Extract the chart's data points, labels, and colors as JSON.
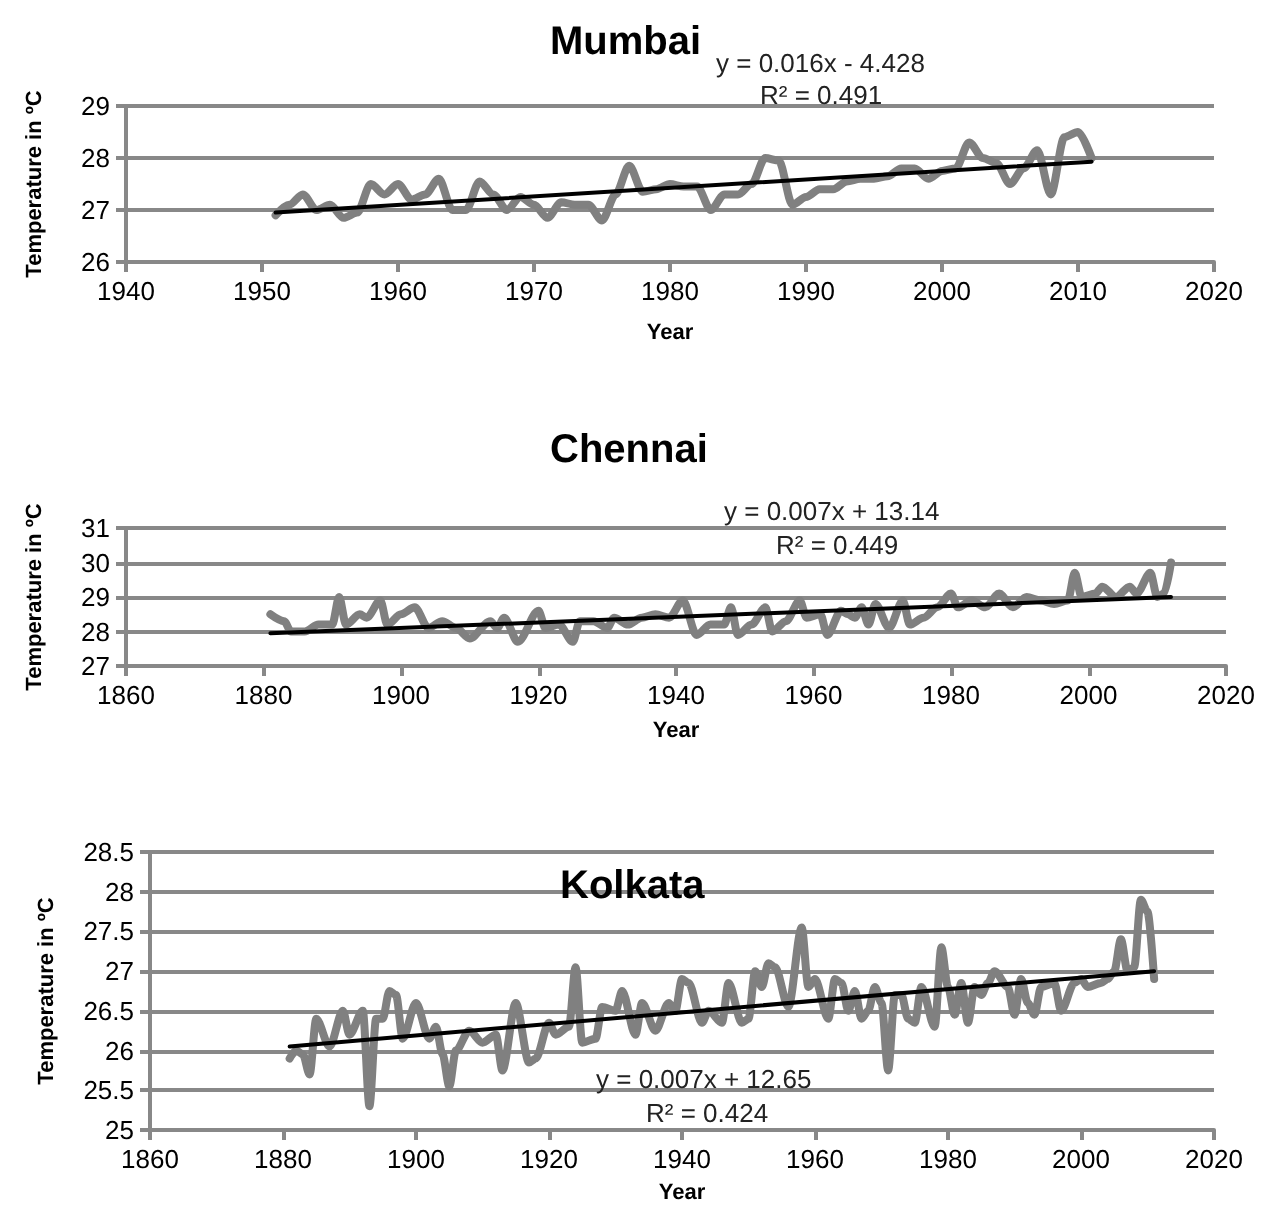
{
  "chart_data": [
    {
      "type": "line",
      "title": "Mumbai",
      "xlabel": "Year",
      "ylabel": "Temperature in ºC",
      "annotations": [
        "y = 0.016x - 4.428",
        "R² = 0.491"
      ],
      "xlim": [
        1940,
        2020
      ],
      "xticks": [
        1940,
        1950,
        1960,
        1970,
        1980,
        1990,
        2000,
        2010,
        2020
      ],
      "ylim": [
        26,
        29
      ],
      "yticks": [
        26,
        27,
        28,
        29
      ],
      "grid": "y",
      "marker": "none",
      "line_style": "solid",
      "series": [
        {
          "color": "#808080",
          "x": [
            1951,
            1952,
            1953,
            1954,
            1955,
            1956,
            1957,
            1958,
            1959,
            1960,
            1961,
            1962,
            1963,
            1964,
            1965,
            1966,
            1967,
            1968,
            1969,
            1970,
            1971,
            1972,
            1973,
            1974,
            1975,
            1976,
            1977,
            1978,
            1979,
            1980,
            1981,
            1982,
            1983,
            1984,
            1985,
            1986,
            1987,
            1988,
            1989,
            1990,
            1991,
            1992,
            1993,
            1994,
            1995,
            1996,
            1997,
            1998,
            1999,
            2000,
            2001,
            2002,
            2003,
            2004,
            2005,
            2006,
            2007,
            2008,
            2009,
            2010,
            2011
          ],
          "values": [
            26.9,
            27.1,
            27.3,
            27.0,
            27.1,
            26.85,
            26.95,
            27.5,
            27.3,
            27.5,
            27.2,
            27.3,
            27.6,
            27.0,
            27.0,
            27.55,
            27.3,
            27.0,
            27.25,
            27.1,
            26.85,
            27.15,
            27.1,
            27.1,
            26.8,
            27.3,
            27.85,
            27.35,
            27.4,
            27.5,
            27.45,
            27.45,
            27.0,
            27.3,
            27.3,
            27.5,
            28.0,
            27.95,
            27.1,
            27.25,
            27.4,
            27.4,
            27.55,
            27.6,
            27.6,
            27.65,
            27.8,
            27.8,
            27.6,
            27.75,
            27.8,
            28.3,
            28.0,
            27.9,
            27.5,
            27.8,
            28.15,
            27.3,
            28.4,
            28.5,
            28.0
          ]
        },
        {
          "type": "line",
          "color": "#000000",
          "x": [
            1951,
            2011
          ],
          "values": [
            26.95,
            27.93
          ]
        }
      ]
    },
    {
      "type": "line",
      "title": "Chennai",
      "xlabel": "Year",
      "ylabel": "Temperature in ºC",
      "annotations": [
        "y = 0.007x + 13.14",
        "R² = 0.449"
      ],
      "xlim": [
        1860,
        2020
      ],
      "xticks": [
        1860,
        1880,
        1900,
        1920,
        1940,
        1960,
        1980,
        2000,
        2020
      ],
      "ylim": [
        27,
        31
      ],
      "yticks": [
        27,
        28,
        29,
        30,
        31
      ],
      "grid": "y",
      "marker": "none",
      "line_style": "solid",
      "series": [
        {
          "color": "#808080",
          "x": [
            1881,
            1883,
            1884,
            1886,
            1888,
            1890,
            1891,
            1892,
            1894,
            1895,
            1897,
            1898,
            1900,
            1902,
            1904,
            1906,
            1908,
            1910,
            1913,
            1914,
            1915,
            1917,
            1920,
            1921,
            1923,
            1925,
            1926,
            1928,
            1930,
            1931,
            1933,
            1935,
            1937,
            1939,
            1941,
            1943,
            1945,
            1947,
            1948,
            1949,
            1951,
            1953,
            1954,
            1956,
            1958,
            1959,
            1961,
            1962,
            1964,
            1965,
            1966,
            1967,
            1968,
            1969,
            1971,
            1973,
            1974,
            1976,
            1978,
            1980,
            1981,
            1983,
            1985,
            1987,
            1989,
            1991,
            1993,
            1995,
            1997,
            1998,
            1999,
            2001,
            2002,
            2004,
            2006,
            2007,
            2009,
            2010,
            2011,
            2012
          ],
          "values": [
            28.5,
            28.3,
            28.0,
            28.0,
            28.2,
            28.2,
            29.0,
            28.2,
            28.5,
            28.4,
            28.9,
            28.2,
            28.5,
            28.7,
            28.1,
            28.3,
            28.1,
            27.8,
            28.3,
            28.1,
            28.4,
            27.7,
            28.6,
            28.1,
            28.2,
            27.7,
            28.3,
            28.3,
            28.1,
            28.4,
            28.2,
            28.4,
            28.5,
            28.4,
            28.9,
            27.9,
            28.2,
            28.2,
            28.7,
            27.9,
            28.2,
            28.7,
            28.0,
            28.3,
            28.9,
            28.4,
            28.5,
            27.9,
            28.6,
            28.5,
            28.4,
            28.7,
            28.2,
            28.8,
            28.1,
            28.9,
            28.2,
            28.4,
            28.7,
            29.1,
            28.7,
            28.9,
            28.7,
            29.1,
            28.7,
            29.0,
            28.9,
            28.8,
            28.9,
            29.7,
            29.0,
            29.1,
            29.3,
            29.0,
            29.3,
            29.1,
            29.7,
            29.0,
            29.1,
            30.0
          ]
        },
        {
          "type": "line",
          "color": "#000000",
          "x": [
            1881,
            2012
          ],
          "values": [
            27.95,
            29.0
          ]
        }
      ]
    },
    {
      "type": "line",
      "title": "Kolkata",
      "xlabel": "Year",
      "ylabel": "Temperature in ºC",
      "annotations": [
        "y = 0.007x + 12.65",
        "R² = 0.424"
      ],
      "xlim": [
        1860,
        2020
      ],
      "xticks": [
        1860,
        1880,
        1900,
        1920,
        1940,
        1960,
        1980,
        2000,
        2020
      ],
      "ylim": [
        25,
        28.5
      ],
      "yticks": [
        25,
        25.5,
        26,
        26.5,
        27,
        27.5,
        28,
        28.5
      ],
      "grid": "y",
      "marker": "none",
      "line_style": "solid",
      "series": [
        {
          "color": "#808080",
          "x": [
            1881,
            1882,
            1883,
            1884,
            1885,
            1887,
            1889,
            1890,
            1892,
            1893,
            1894,
            1895,
            1896,
            1897,
            1898,
            1900,
            1902,
            1903,
            1904,
            1905,
            1906,
            1908,
            1910,
            1912,
            1913,
            1915,
            1917,
            1918,
            1920,
            1921,
            1923,
            1924,
            1925,
            1927,
            1928,
            1930,
            1931,
            1933,
            1934,
            1936,
            1938,
            1939,
            1940,
            1941,
            1943,
            1944,
            1946,
            1947,
            1949,
            1950,
            1951,
            1952,
            1953,
            1954,
            1956,
            1958,
            1959,
            1960,
            1962,
            1963,
            1964,
            1965,
            1966,
            1967,
            1968,
            1969,
            1970,
            1971,
            1972,
            1973,
            1974,
            1975,
            1976,
            1978,
            1979,
            1980,
            1981,
            1982,
            1983,
            1984,
            1985,
            1986,
            1987,
            1989,
            1990,
            1991,
            1992,
            1993,
            1994,
            1996,
            1997,
            1999,
            2000,
            2001,
            2003,
            2004,
            2005,
            2006,
            2007,
            2008,
            2009,
            2010,
            2011
          ],
          "values": [
            25.9,
            26.0,
            25.95,
            25.7,
            26.4,
            26.05,
            26.5,
            26.2,
            26.5,
            25.3,
            26.4,
            26.4,
            26.75,
            26.7,
            26.15,
            26.6,
            26.15,
            26.3,
            25.95,
            25.55,
            26.0,
            26.25,
            26.1,
            26.2,
            25.75,
            26.6,
            25.85,
            25.9,
            26.35,
            26.2,
            26.3,
            27.05,
            26.1,
            26.15,
            26.55,
            26.5,
            26.75,
            26.2,
            26.6,
            26.25,
            26.6,
            26.5,
            26.9,
            26.85,
            26.35,
            26.5,
            26.35,
            26.85,
            26.35,
            26.4,
            27.0,
            26.8,
            27.1,
            27.05,
            26.55,
            27.55,
            26.8,
            26.9,
            26.4,
            26.9,
            26.85,
            26.5,
            26.75,
            26.4,
            26.5,
            26.8,
            26.6,
            25.75,
            26.7,
            26.7,
            26.4,
            26.35,
            26.8,
            26.3,
            27.3,
            26.8,
            26.45,
            26.85,
            26.35,
            26.8,
            26.7,
            26.85,
            27.0,
            26.8,
            26.45,
            26.9,
            26.6,
            26.45,
            26.8,
            26.85,
            26.5,
            26.85,
            26.9,
            26.8,
            26.85,
            26.9,
            27.0,
            27.4,
            27.0,
            27.05,
            27.9,
            27.75,
            26.9
          ]
        },
        {
          "type": "line",
          "color": "#000000",
          "x": [
            1881,
            2011
          ],
          "values": [
            26.05,
            27.0
          ]
        }
      ]
    }
  ]
}
